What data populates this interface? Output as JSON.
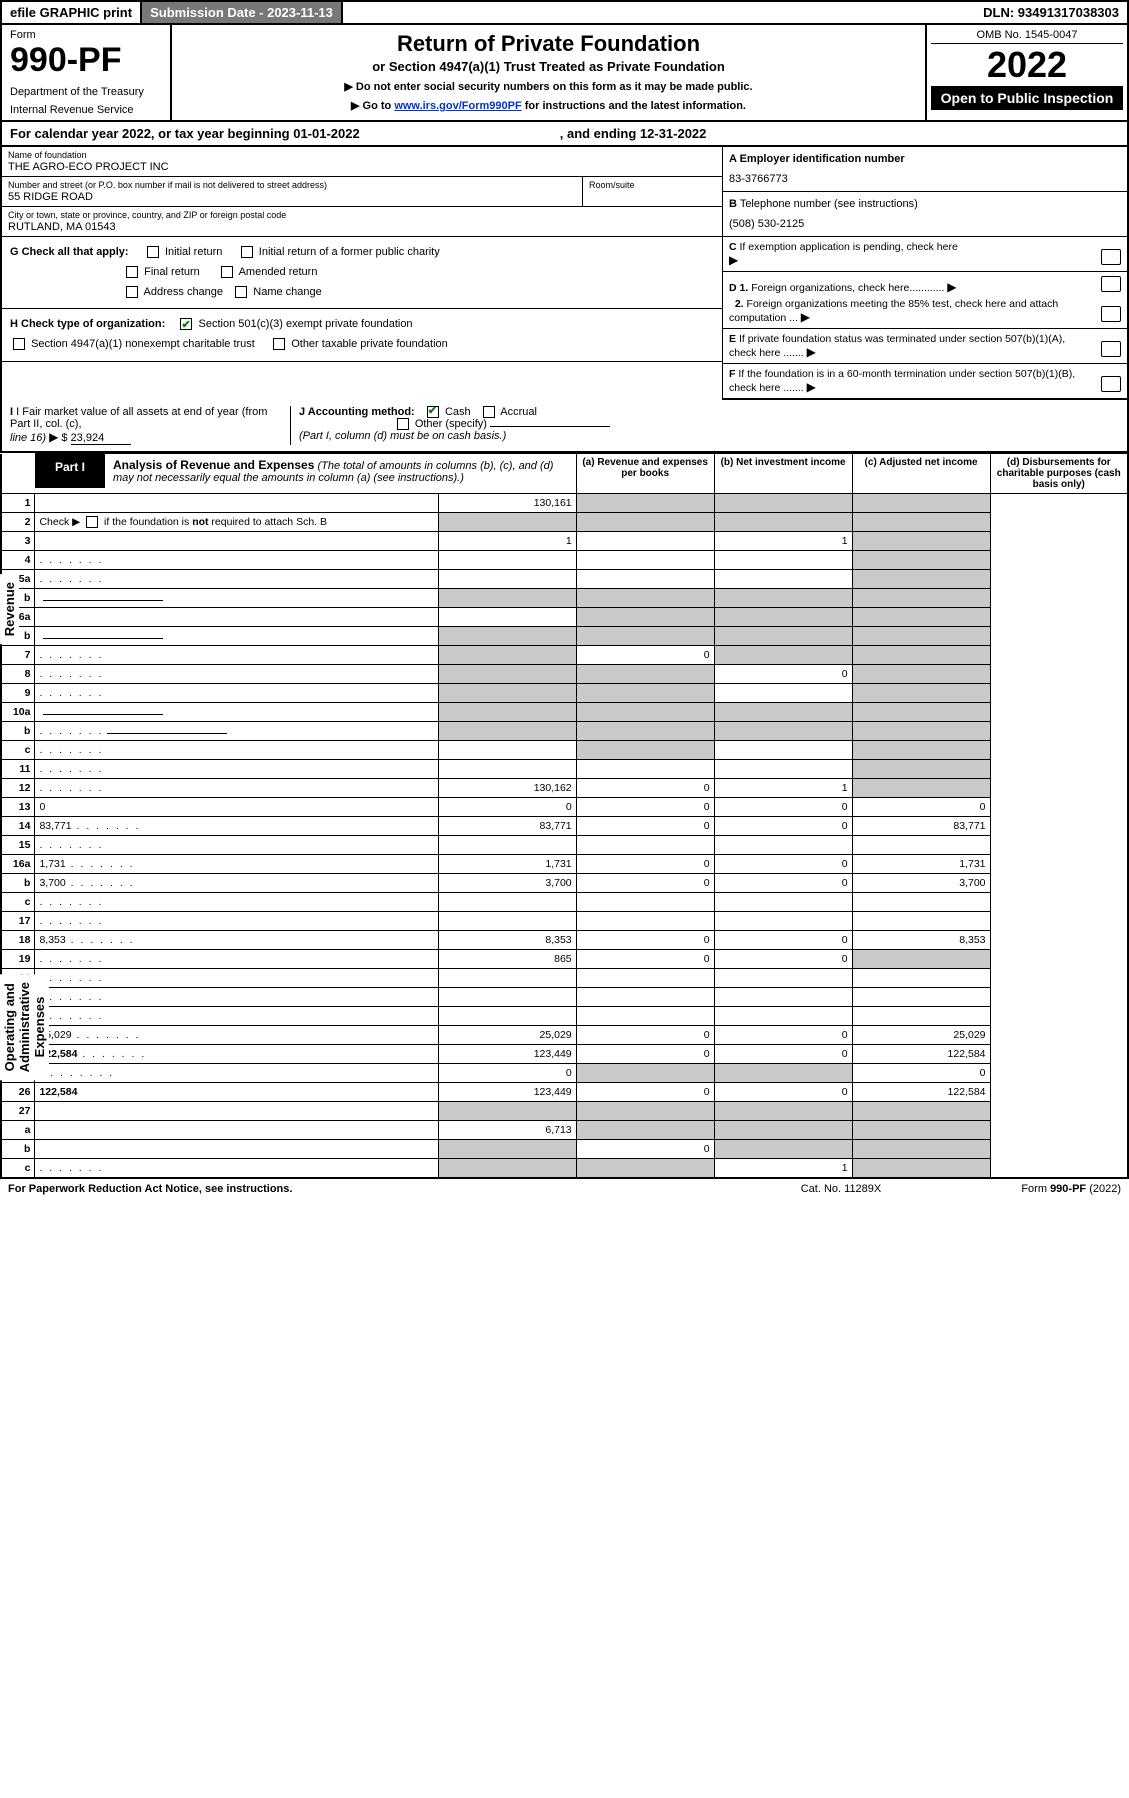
{
  "top": {
    "efile": "efile GRAPHIC print",
    "subdate_label": "Submission Date - 2023-11-13",
    "dln": "DLN: 93491317038303"
  },
  "header": {
    "form_label": "Form",
    "form_num": "990-PF",
    "dept": "Department of the Treasury",
    "irs": "Internal Revenue Service",
    "title": "Return of Private Foundation",
    "subtitle": "or Section 4947(a)(1) Trust Treated as Private Foundation",
    "instr1": "▶ Do not enter social security numbers on this form as it may be made public.",
    "instr2_pre": "▶ Go to ",
    "instr2_link": "www.irs.gov/Form990PF",
    "instr2_post": " for instructions and the latest information.",
    "omb": "OMB No. 1545-0047",
    "year": "2022",
    "open": "Open to Public Inspection"
  },
  "calendar": {
    "text_a": "For calendar year 2022, or tax year beginning 01-01-2022",
    "text_b": ", and ending 12-31-2022"
  },
  "name_block": {
    "label": "Name of foundation",
    "value": "THE AGRO-ECO PROJECT INC"
  },
  "addr_block": {
    "label": "Number and street (or P.O. box number if mail is not delivered to street address)",
    "value": "55 RIDGE ROAD",
    "room_label": "Room/suite"
  },
  "city_block": {
    "label": "City or town, state or province, country, and ZIP or foreign postal code",
    "value": "RUTLAND, MA  01543"
  },
  "right_info": {
    "a_label": "A Employer identification number",
    "a_val": "83-3766773",
    "b_label": "B",
    "b_text": "Telephone number (see instructions)",
    "b_val": "(508) 530-2125",
    "c_label": "C",
    "c_text": "If exemption application is pending, check here",
    "d1": "D 1.",
    "d1_text": "Foreign organizations, check here............",
    "d2": "2.",
    "d2_text": "Foreign organizations meeting the 85% test, check here and attach computation ...",
    "e_label": "E",
    "e_text": "If private foundation status was terminated under section 507(b)(1)(A), check here .......",
    "f_label": "F",
    "f_text": "If the foundation is in a 60-month termination under section 507(b)(1)(B), check here ......."
  },
  "g_row": {
    "label": "G Check all that apply:",
    "items": [
      "Initial return",
      "Initial return of a former public charity",
      "Final return",
      "Amended return",
      "Address change",
      "Name change"
    ]
  },
  "h_row": {
    "label": "H Check type of organization:",
    "opt1": "Section 501(c)(3) exempt private foundation",
    "opt2": "Section 4947(a)(1) nonexempt charitable trust",
    "opt3": "Other taxable private foundation"
  },
  "i_block": {
    "label_a": "I Fair market value of all assets at end of year (from Part II, col. (c),",
    "label_b": "line 16)",
    "arrow": "▶",
    "dollar": "$",
    "value": "23,924"
  },
  "j_block": {
    "label": "J Accounting method:",
    "cash": "Cash",
    "accrual": "Accrual",
    "other": "Other (specify)",
    "note": "(Part I, column (d) must be on cash basis.)"
  },
  "part1": {
    "tag": "Part I",
    "title": "Analysis of Revenue and Expenses",
    "title_note": "(The total of amounts in columns (b), (c), and (d) may not necessarily equal the amounts in column (a) (see instructions).)",
    "col_a": "(a) Revenue and expenses per books",
    "col_b": "(b) Net investment income",
    "col_c": "(c) Adjusted net income",
    "col_d": "(d) Disbursements for charitable purposes (cash basis only)"
  },
  "side_labels": {
    "rev": "Revenue",
    "exp": "Operating and Administrative Expenses"
  },
  "rows": [
    {
      "n": "1",
      "d": "",
      "a": "130,161",
      "b": "",
      "c": "",
      "shade_bcd": true
    },
    {
      "n": "2",
      "d": "",
      "a": "",
      "b": "",
      "c": "",
      "shade_all": true,
      "bold_not": true,
      "dots": true
    },
    {
      "n": "3",
      "d": "",
      "a": "1",
      "b": "",
      "c": "1",
      "shade_d": true
    },
    {
      "n": "4",
      "d": "",
      "a": "",
      "b": "",
      "c": "",
      "shade_d": true,
      "dots": true
    },
    {
      "n": "5a",
      "d": "",
      "a": "",
      "b": "",
      "c": "",
      "shade_d": true,
      "dots": true
    },
    {
      "n": "b",
      "d": "",
      "a": "",
      "b": "",
      "c": "",
      "shade_all": true,
      "has_blank_field": true
    },
    {
      "n": "6a",
      "d": "",
      "a": "",
      "b": "",
      "c": "",
      "shade_bcd": true
    },
    {
      "n": "b",
      "d": "",
      "a": "",
      "b": "",
      "c": "",
      "shade_all": true,
      "has_blank_field": true
    },
    {
      "n": "7",
      "d": "",
      "a": "",
      "b": "0",
      "c": "",
      "shade_a": true,
      "shade_cd": true,
      "dots": true
    },
    {
      "n": "8",
      "d": "",
      "a": "",
      "b": "",
      "c": "0",
      "shade_ab": true,
      "shade_d": true,
      "dots": true
    },
    {
      "n": "9",
      "d": "",
      "a": "",
      "b": "",
      "c": "",
      "shade_ab": true,
      "shade_d": true,
      "dots": true
    },
    {
      "n": "10a",
      "d": "",
      "a": "",
      "b": "",
      "c": "",
      "shade_all": true,
      "has_blank_field": true
    },
    {
      "n": "b",
      "d": "",
      "a": "",
      "b": "",
      "c": "",
      "shade_all": true,
      "has_blank_field": true,
      "dots": true
    },
    {
      "n": "c",
      "d": "",
      "a": "",
      "b": "",
      "c": "",
      "shade_b": true,
      "shade_d": true,
      "dots": true
    },
    {
      "n": "11",
      "d": "",
      "a": "",
      "b": "",
      "c": "",
      "shade_d": true,
      "dots": true
    },
    {
      "n": "12",
      "d": "",
      "a": "130,162",
      "b": "0",
      "c": "1",
      "shade_d": true,
      "bold": true,
      "dots": true
    },
    {
      "n": "13",
      "d": "0",
      "a": "0",
      "b": "0",
      "c": "0"
    },
    {
      "n": "14",
      "d": "83,771",
      "a": "83,771",
      "b": "0",
      "c": "0",
      "dots": true
    },
    {
      "n": "15",
      "d": "",
      "a": "",
      "b": "",
      "c": "",
      "dots": true
    },
    {
      "n": "16a",
      "d": "1,731",
      "a": "1,731",
      "b": "0",
      "c": "0",
      "dots": true
    },
    {
      "n": "b",
      "d": "3,700",
      "a": "3,700",
      "b": "0",
      "c": "0",
      "dots": true
    },
    {
      "n": "c",
      "d": "",
      "a": "",
      "b": "",
      "c": "",
      "dots": true
    },
    {
      "n": "17",
      "d": "",
      "a": "",
      "b": "",
      "c": "",
      "dots": true
    },
    {
      "n": "18",
      "d": "8,353",
      "a": "8,353",
      "b": "0",
      "c": "0",
      "dots": true
    },
    {
      "n": "19",
      "d": "",
      "a": "865",
      "b": "0",
      "c": "0",
      "shade_d": true,
      "dots": true
    },
    {
      "n": "20",
      "d": "",
      "a": "",
      "b": "",
      "c": "",
      "dots": true
    },
    {
      "n": "21",
      "d": "",
      "a": "",
      "b": "",
      "c": "",
      "dots": true
    },
    {
      "n": "22",
      "d": "",
      "a": "",
      "b": "",
      "c": "",
      "dots": true
    },
    {
      "n": "23",
      "d": "25,029",
      "a": "25,029",
      "b": "0",
      "c": "0",
      "dots": true
    },
    {
      "n": "24",
      "d": "122,584",
      "a": "123,449",
      "b": "0",
      "c": "0",
      "bold": true,
      "dots": true,
      "twoline": true
    },
    {
      "n": "25",
      "d": "0",
      "a": "0",
      "b": "",
      "c": "",
      "shade_bc": true,
      "dots": true
    },
    {
      "n": "26",
      "d": "122,584",
      "a": "123,449",
      "b": "0",
      "c": "0",
      "bold": true,
      "twoline": true
    },
    {
      "n": "27",
      "d": "",
      "a": "",
      "b": "",
      "c": "",
      "shade_all": true
    },
    {
      "n": "a",
      "d": "",
      "a": "6,713",
      "b": "",
      "c": "",
      "shade_bcd": true,
      "bold": true
    },
    {
      "n": "b",
      "d": "",
      "a": "",
      "b": "0",
      "c": "",
      "shade_a": true,
      "shade_cd": true,
      "bold": true
    },
    {
      "n": "c",
      "d": "",
      "a": "",
      "b": "",
      "c": "1",
      "shade_ab": true,
      "shade_d": true,
      "bold": true,
      "dots": true
    }
  ],
  "footer": {
    "pra": "For Paperwork Reduction Act Notice, see instructions.",
    "cat": "Cat. No. 11289X",
    "form": "Form 990-PF (2022)"
  }
}
